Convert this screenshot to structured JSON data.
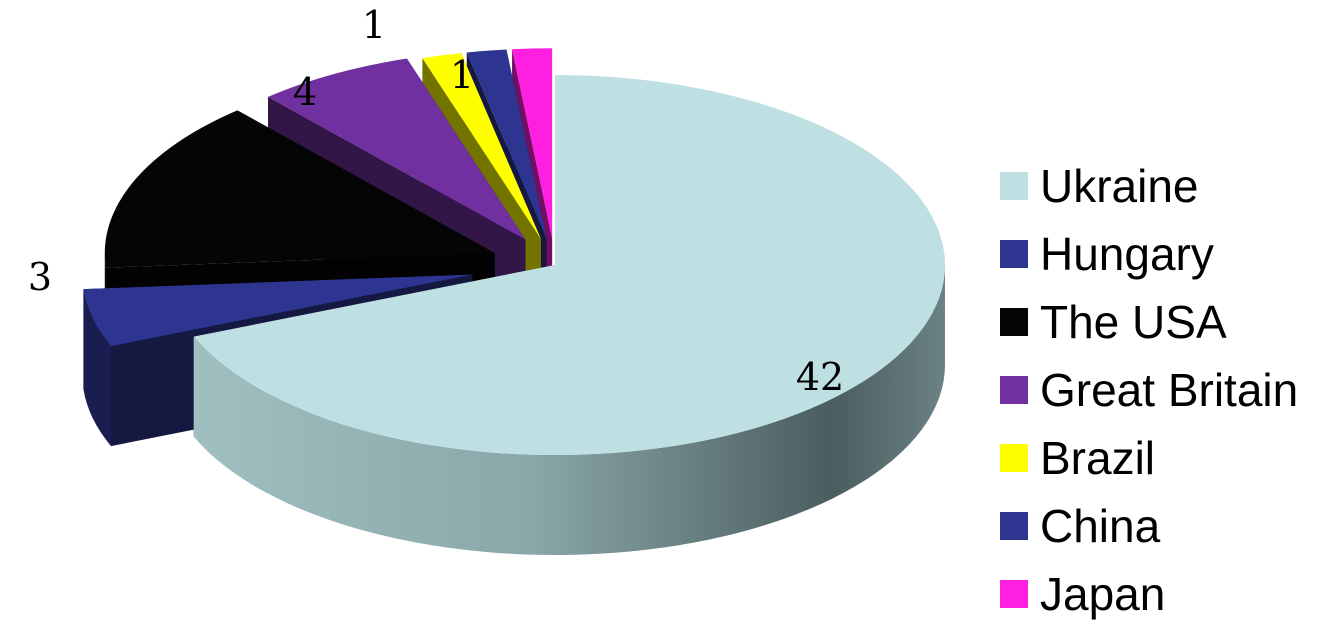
{
  "chart_data": {
    "type": "pie",
    "categories": [
      "Ukraine",
      "Hungary",
      "The USA",
      "Great Britain",
      "Brazil",
      "China",
      "Japan"
    ],
    "values": [
      42,
      3,
      9,
      4,
      1,
      1,
      1
    ],
    "data_labels": [
      "42",
      "3",
      "",
      "4",
      "1",
      "",
      "1"
    ],
    "colors": [
      "#bfe0e2",
      "#2e3591",
      "#050505",
      "#7030a0",
      "#ffff00",
      "#2e3591",
      "#ff1fe0"
    ],
    "legend_position": "right",
    "exploded": true,
    "three_d": true
  }
}
